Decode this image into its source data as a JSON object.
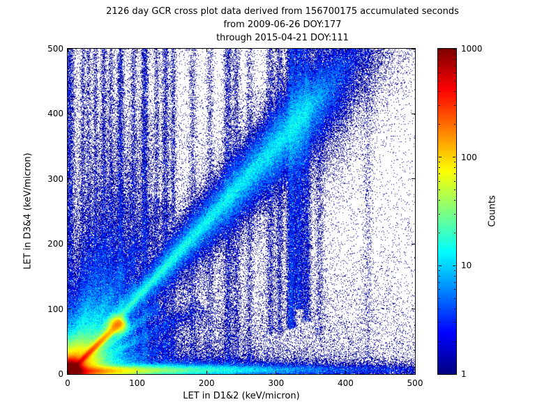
{
  "title": {
    "line1": "2126 day GCR cross plot data derived from 156700175 accumulated seconds",
    "line2": "from 2009-06-26 DOY:177",
    "line3": "through 2015-04-21 DOY:111"
  },
  "axes": {
    "xlabel": "LET in D1&2 (keV/micron)",
    "ylabel": "LET in D3&4 (keV/micron)",
    "x_ticks": [
      0,
      100,
      200,
      300,
      400,
      500
    ],
    "y_ticks": [
      0,
      100,
      200,
      300,
      400,
      500
    ],
    "xlim": [
      0,
      500
    ],
    "ylim": [
      0,
      500
    ]
  },
  "colorbar": {
    "label": "Counts",
    "ticks": [
      1,
      10,
      100,
      1000
    ],
    "scale": "log",
    "cmap": "jet"
  },
  "chart_data": {
    "type": "heatmap",
    "title": "2126 day GCR cross plot data derived from 156700175 accumulated seconds from 2009-06-26 DOY:177 through 2015-04-21 DOY:111",
    "xlabel": "LET in D1&2 (keV/micron)",
    "ylabel": "LET in D3&4 (keV/micron)",
    "xlim": [
      0,
      500
    ],
    "ylim": [
      0,
      500
    ],
    "bins": [
      498,
      467
    ],
    "colorbar": {
      "label": "Counts",
      "scale": "log",
      "range": [
        1,
        1000
      ],
      "cmap": "jet"
    },
    "seed": 20150421,
    "description": "2D histogram of coincident GCR LET in detectors D1&2 vs D3&4. Hot (red, ~1000 counts) core at the origin, a bright red-to-yellow proton track along y=x out to ~(75,75) ending in an orange blob, a red-to-cyan band along the bottom (y<10) fading by x~300, several fainter ion tracks radiating from the origin, a broad blue diagonal coincidence band (slope ~1.17) widening up to ~(345,400), dense vertical scatter columns near x=320-345 and fainter ones at x=52,76,111,141,231,243, and sparse dark-blue single-count speckle over the whole plane, denser toward lower-left.",
    "density_model": {
      "components": [
        {
          "type": "blob",
          "x": 3,
          "y": 3,
          "sx": 9,
          "sy": 9,
          "amp": 2600
        },
        {
          "type": "blob",
          "x": 8,
          "y": 8,
          "sx": 20,
          "sy": 20,
          "amp": 130
        },
        {
          "type": "blob",
          "x": 18,
          "y": 18,
          "sx": 38,
          "sy": 38,
          "amp": 11
        },
        {
          "type": "blob",
          "x": 72,
          "y": 76,
          "sx": 7,
          "sy": 7,
          "amp": 110
        },
        {
          "type": "ray",
          "slope": 1.05,
          "decay": 48,
          "w0": 1.6,
          "wg": 0.02,
          "maxR": 112,
          "amp": 650
        },
        {
          "type": "ray",
          "slope": 0.78,
          "decay": 55,
          "w0": 1.8,
          "wg": 0.03,
          "maxR": 170,
          "amp": 55
        },
        {
          "type": "ray",
          "slope": 1.38,
          "decay": 55,
          "w0": 1.8,
          "wg": 0.03,
          "maxR": 170,
          "amp": 55
        },
        {
          "type": "ray",
          "slope": 0.52,
          "decay": 60,
          "w0": 1.8,
          "wg": 0.04,
          "maxR": 220,
          "amp": 28
        },
        {
          "type": "ray",
          "slope": 1.95,
          "decay": 75,
          "w0": 1.8,
          "wg": 0.05,
          "maxR": 300,
          "amp": 30
        },
        {
          "type": "ray",
          "slope": 3.1,
          "decay": 85,
          "w0": 1.8,
          "wg": 0.06,
          "maxR": 420,
          "amp": 18
        },
        {
          "type": "ray",
          "slope": 5.6,
          "decay": 95,
          "w0": 2,
          "wg": 0.07,
          "maxR": 520,
          "amp": 10
        },
        {
          "type": "ray",
          "slope": 0.3,
          "decay": 55,
          "w0": 1.8,
          "wg": 0.04,
          "maxR": 160,
          "amp": 16
        },
        {
          "type": "diag",
          "slope": 1.17,
          "x0": 20,
          "x1": 345,
          "w0": 4,
          "wg": 0.09,
          "amp": 7,
          "core": 16
        },
        {
          "type": "diag",
          "slope": 1.15,
          "x0": 30,
          "x1": 390,
          "w0": 16,
          "wg": 0.13,
          "amp": 1.1,
          "core": 0
        },
        {
          "type": "hband",
          "y": 4,
          "sy": 3.5,
          "decayx": 30,
          "amp": 520
        },
        {
          "type": "hband",
          "y": 6,
          "sy": 4.5,
          "decayx": 120,
          "amp": 80
        },
        {
          "type": "hband",
          "y": 9,
          "sy": 9,
          "decayx": 210,
          "amp": 6
        },
        {
          "type": "vband",
          "x": 2,
          "sx": 4,
          "y0": 0,
          "y1": 500,
          "amp": 1.6
        },
        {
          "type": "vband",
          "x": 22,
          "sx": 2,
          "y0": 0,
          "y1": 500,
          "amp": 0.7
        },
        {
          "type": "vband",
          "x": 30,
          "sx": 2,
          "y0": 0,
          "y1": 500,
          "amp": 0.6
        },
        {
          "type": "vband",
          "x": 40,
          "sx": 2,
          "y0": 0,
          "y1": 500,
          "amp": 0.7
        },
        {
          "type": "vband",
          "x": 52,
          "sx": 2.2,
          "y0": 0,
          "y1": 500,
          "amp": 1.0
        },
        {
          "type": "vband",
          "x": 62,
          "sx": 2,
          "y0": 0,
          "y1": 500,
          "amp": 0.7
        },
        {
          "type": "vband",
          "x": 76,
          "sx": 2.5,
          "y0": 0,
          "y1": 500,
          "amp": 1.4
        },
        {
          "type": "vband",
          "x": 95,
          "sx": 2.2,
          "y0": 0,
          "y1": 500,
          "amp": 0.8
        },
        {
          "type": "vband",
          "x": 111,
          "sx": 2.8,
          "y0": 0,
          "y1": 500,
          "amp": 1.5
        },
        {
          "type": "vband",
          "x": 128,
          "sx": 2.2,
          "y0": 0,
          "y1": 500,
          "amp": 0.6
        },
        {
          "type": "vband",
          "x": 141,
          "sx": 2.8,
          "y0": 0,
          "y1": 500,
          "amp": 1.1
        },
        {
          "type": "vband",
          "x": 152,
          "sx": 2.4,
          "y0": 0,
          "y1": 500,
          "amp": 0.8
        },
        {
          "type": "vband",
          "x": 180,
          "sx": 3,
          "y0": 0,
          "y1": 500,
          "amp": 0.5
        },
        {
          "type": "vband",
          "x": 205,
          "sx": 3,
          "y0": 0,
          "y1": 500,
          "amp": 0.45
        },
        {
          "type": "vband",
          "x": 231,
          "sx": 3.5,
          "y0": 0,
          "y1": 500,
          "amp": 1.1
        },
        {
          "type": "vband",
          "x": 243,
          "sx": 3,
          "y0": 0,
          "y1": 500,
          "amp": 0.7
        },
        {
          "type": "vband",
          "x": 262,
          "sx": 3,
          "y0": 0,
          "y1": 500,
          "amp": 0.5
        },
        {
          "type": "vband",
          "x": 292,
          "sx": 3.5,
          "y0": 60,
          "y1": 500,
          "amp": 0.8
        },
        {
          "type": "vband",
          "x": 305,
          "sx": 3,
          "y0": 60,
          "y1": 500,
          "amp": 0.9
        },
        {
          "type": "vband",
          "x": 322,
          "sx": 3.5,
          "y0": 70,
          "y1": 500,
          "amp": 3.2
        },
        {
          "type": "vband",
          "x": 333,
          "sx": 4,
          "y0": 100,
          "y1": 500,
          "amp": 2.6
        },
        {
          "type": "vband",
          "x": 344,
          "sx": 3.5,
          "y0": 80,
          "y1": 500,
          "amp": 1.8
        },
        {
          "type": "vband",
          "x": 363,
          "sx": 4,
          "y0": 60,
          "y1": 500,
          "amp": 0.5
        },
        {
          "type": "vband",
          "x": 432,
          "sx": 4,
          "y0": 0,
          "y1": 500,
          "amp": 0.22
        },
        {
          "type": "cloud",
          "xs": 170,
          "ys": 26,
          "amp": 2.2
        },
        {
          "type": "cloud",
          "xs": 140,
          "ys": 60,
          "amp": 1.6
        },
        {
          "type": "cloud",
          "xs": 230,
          "ys": 140,
          "amp": 0.35
        },
        {
          "type": "cloud",
          "xs": 260,
          "ys": 130,
          "amp": 0.5
        },
        {
          "type": "bg",
          "base": 0.013,
          "amp": 0.2,
          "xs": 170,
          "ys": 480
        }
      ]
    }
  }
}
